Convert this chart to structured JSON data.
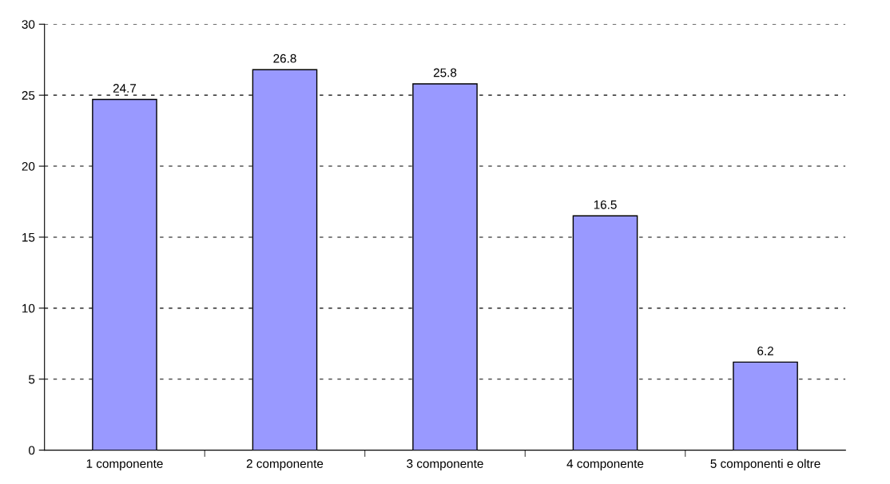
{
  "chart_data": {
    "type": "bar",
    "categories": [
      "1 componente",
      "2 componente",
      "3 componente",
      "4 componente",
      "5 componenti e oltre"
    ],
    "values": [
      24.7,
      26.8,
      25.8,
      16.5,
      6.2
    ],
    "color": "#9999ff",
    "ylim": [
      0,
      30
    ],
    "yticks": [
      0,
      5,
      10,
      15,
      20,
      25,
      30
    ],
    "grid": "y",
    "data_labels": true
  }
}
